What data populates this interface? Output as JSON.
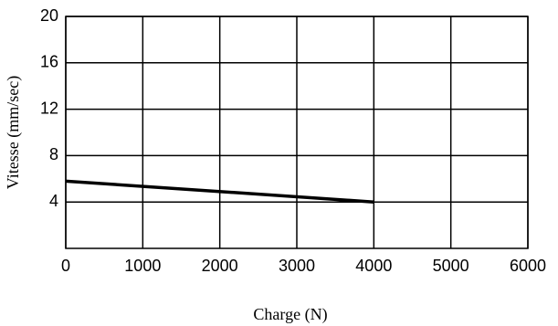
{
  "chart_data": {
    "type": "line",
    "x_label": "Charge (N)",
    "y_label": "Vitesse (mm/sec)",
    "x": [
      0,
      4000
    ],
    "series": [
      {
        "color": "#000000",
        "values": [
          5.8,
          4.0
        ]
      }
    ],
    "xlim": [
      0,
      6000
    ],
    "xticks": [
      0,
      1000,
      2000,
      3000,
      4000,
      5000,
      6000
    ],
    "ylim": [
      0,
      20
    ],
    "yticks": [
      4,
      8,
      12,
      16,
      20
    ],
    "grid": true
  }
}
